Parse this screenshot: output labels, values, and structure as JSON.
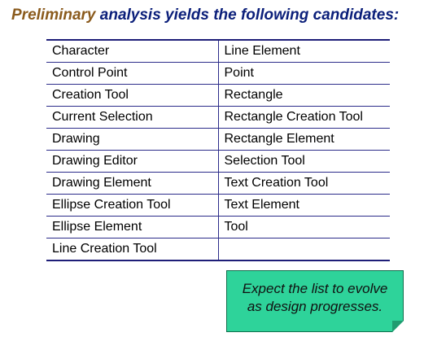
{
  "heading": {
    "part1": "Preliminary",
    "part2": " analysis yields the following candidates:"
  },
  "table": {
    "rows": [
      [
        "Character",
        "Line Element"
      ],
      [
        "Control Point",
        "Point"
      ],
      [
        "Creation Tool",
        "Rectangle"
      ],
      [
        "Current Selection",
        "Rectangle Creation Tool"
      ],
      [
        "Drawing",
        "Rectangle Element"
      ],
      [
        "Drawing Editor",
        "Selection Tool"
      ],
      [
        "Drawing Element",
        "Text Creation Tool"
      ],
      [
        "Ellipse Creation Tool",
        "Text Element"
      ],
      [
        "Ellipse Element",
        "Tool"
      ],
      [
        "Line Creation Tool",
        ""
      ]
    ]
  },
  "note": {
    "line1": "Expect the list to evolve",
    "line2": "as design progresses."
  },
  "colors": {
    "heading_first": "#8a5a1c",
    "heading_rest": "#0b1f7a",
    "table_rule": "#2c2c8a",
    "note_fill": "#2ed39a"
  }
}
